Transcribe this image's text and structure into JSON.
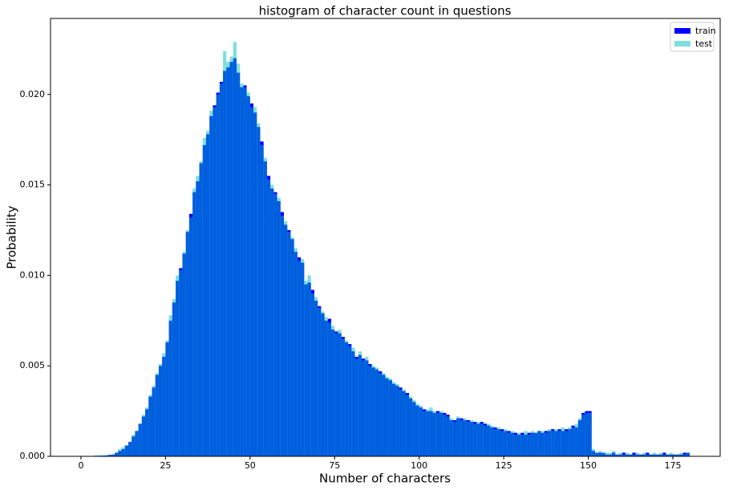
{
  "chart_data": {
    "type": "histogram",
    "title": "histogram of character count in questions",
    "x_label": "Number of characters",
    "y_label": "Probability",
    "bins": [
      0,
      1,
      2,
      3,
      4,
      5,
      6,
      7,
      8,
      9,
      10,
      11,
      12,
      13,
      14,
      15,
      16,
      17,
      18,
      19,
      20,
      21,
      22,
      23,
      24,
      25,
      26,
      27,
      28,
      29,
      30,
      31,
      32,
      33,
      34,
      35,
      36,
      37,
      38,
      39,
      40,
      41,
      42,
      43,
      44,
      45,
      46,
      47,
      48,
      49,
      50,
      51,
      52,
      53,
      54,
      55,
      56,
      57,
      58,
      59,
      60,
      61,
      62,
      63,
      64,
      65,
      66,
      67,
      68,
      69,
      70,
      71,
      72,
      73,
      74,
      75,
      76,
      77,
      78,
      79,
      80,
      81,
      82,
      83,
      84,
      85,
      86,
      87,
      88,
      89,
      90,
      91,
      92,
      93,
      94,
      95,
      96,
      97,
      98,
      99,
      100,
      101,
      102,
      103,
      104,
      105,
      106,
      107,
      108,
      109,
      110,
      111,
      112,
      113,
      114,
      115,
      116,
      117,
      118,
      119,
      120,
      121,
      122,
      123,
      124,
      125,
      126,
      127,
      128,
      129,
      130,
      131,
      132,
      133,
      134,
      135,
      136,
      137,
      138,
      139,
      140,
      141,
      142,
      143,
      144,
      145,
      146,
      147,
      148,
      149,
      150,
      151,
      152,
      153,
      154,
      155,
      156,
      157,
      158,
      159,
      160,
      161,
      162,
      163,
      164,
      165,
      166,
      167,
      168,
      169,
      170,
      171,
      172,
      173,
      174,
      175,
      176,
      177,
      178,
      179,
      180
    ],
    "series": [
      {
        "name": "train",
        "color": "#0000ff",
        "alpha": 1,
        "values": [
          0,
          0,
          1e-05,
          2e-05,
          3e-05,
          3e-05,
          4e-05,
          5e-05,
          8e-05,
          0.0001,
          0.0002,
          0.0003,
          0.0004,
          0.0006,
          0.0008,
          0.0011,
          0.0014,
          0.0018,
          0.0022,
          0.0026,
          0.0033,
          0.0038,
          0.0045,
          0.005,
          0.0055,
          0.0063,
          0.0075,
          0.0085,
          0.0097,
          0.0104,
          0.0112,
          0.0124,
          0.0134,
          0.0146,
          0.0152,
          0.0162,
          0.0172,
          0.0178,
          0.0188,
          0.0194,
          0.0201,
          0.0207,
          0.0213,
          0.0215,
          0.0218,
          0.022,
          0.0212,
          0.0204,
          0.0205,
          0.0199,
          0.0195,
          0.019,
          0.0182,
          0.0174,
          0.0163,
          0.0155,
          0.0148,
          0.0146,
          0.0141,
          0.0135,
          0.0128,
          0.0125,
          0.012,
          0.0113,
          0.011,
          0.0107,
          0.0095,
          0.0096,
          0.0092,
          0.0086,
          0.0083,
          0.0079,
          0.0075,
          0.0076,
          0.007,
          0.0069,
          0.0068,
          0.0066,
          0.0063,
          0.0062,
          0.0058,
          0.0055,
          0.0056,
          0.0054,
          0.0053,
          0.0051,
          0.0049,
          0.0048,
          0.0047,
          0.0045,
          0.0043,
          0.0042,
          0.004,
          0.0039,
          0.0038,
          0.0036,
          0.0035,
          0.0032,
          0.003,
          0.0028,
          0.0027,
          0.0026,
          0.0025,
          0.0025,
          0.0024,
          0.0025,
          0.0024,
          0.0024,
          0.0023,
          0.002,
          0.002,
          0.0021,
          0.0021,
          0.002,
          0.002,
          0.0019,
          0.0019,
          0.0018,
          0.0019,
          0.0018,
          0.0017,
          0.0016,
          0.0016,
          0.0015,
          0.0015,
          0.0014,
          0.0014,
          0.0013,
          0.0013,
          0.0012,
          0.0013,
          0.0012,
          0.0013,
          0.0013,
          0.0013,
          0.0014,
          0.0013,
          0.0014,
          0.0014,
          0.0015,
          0.0014,
          0.0015,
          0.0014,
          0.0015,
          0.0015,
          0.0017,
          0.0016,
          0.002,
          0.0024,
          0.0025,
          0.0025,
          0.0003,
          0.0002,
          0.0002,
          0.0002,
          0.0001,
          0.0001,
          0.0002,
          0.0001,
          0.0001,
          0.0002,
          0.0001,
          0.0001,
          0.0002,
          0.0001,
          0.0001,
          0.0001,
          0.0002,
          0.0001,
          0.0001,
          0.0001,
          0.0001,
          0.0002,
          0.0001,
          0.0001,
          0.0001,
          0.0001,
          0.0001,
          0.0002,
          0.0002
        ]
      },
      {
        "name": "test",
        "color": "#00bebe",
        "alpha": 0.5,
        "values": [
          0,
          0,
          1e-05,
          2e-05,
          4e-05,
          4e-05,
          5e-05,
          6e-05,
          9e-05,
          0.0001,
          0.0002,
          0.0004,
          0.0005,
          0.0006,
          0.0008,
          0.0012,
          0.0014,
          0.0018,
          0.0023,
          0.0027,
          0.0034,
          0.0039,
          0.0046,
          0.0051,
          0.0057,
          0.0064,
          0.0078,
          0.0087,
          0.01,
          0.0103,
          0.0113,
          0.0125,
          0.0132,
          0.0148,
          0.0155,
          0.0163,
          0.0176,
          0.018,
          0.0191,
          0.0193,
          0.02,
          0.0206,
          0.0224,
          0.0218,
          0.0221,
          0.0229,
          0.0217,
          0.0206,
          0.0204,
          0.0201,
          0.0193,
          0.0193,
          0.0184,
          0.0172,
          0.0165,
          0.0153,
          0.015,
          0.0145,
          0.0143,
          0.0133,
          0.013,
          0.0124,
          0.0121,
          0.0115,
          0.0108,
          0.0109,
          0.0097,
          0.01,
          0.009,
          0.0088,
          0.0082,
          0.008,
          0.0077,
          0.0074,
          0.0072,
          0.0068,
          0.007,
          0.0065,
          0.0064,
          0.0061,
          0.006,
          0.0054,
          0.0058,
          0.0053,
          0.0055,
          0.005,
          0.005,
          0.0049,
          0.0046,
          0.0046,
          0.0044,
          0.0043,
          0.0041,
          0.004,
          0.0037,
          0.0037,
          0.0034,
          0.0033,
          0.0031,
          0.0029,
          0.0028,
          0.0025,
          0.0026,
          0.0027,
          0.0025,
          0.0024,
          0.0025,
          0.0023,
          0.0022,
          0.0021,
          0.0019,
          0.0022,
          0.002,
          0.0021,
          0.0019,
          0.002,
          0.0018,
          0.0019,
          0.0018,
          0.0017,
          0.0018,
          0.0017,
          0.0015,
          0.0016,
          0.0014,
          0.0015,
          0.0013,
          0.0014,
          0.0012,
          0.0013,
          0.0012,
          0.0014,
          0.0012,
          0.0014,
          0.0013,
          0.0014,
          0.0014,
          0.0013,
          0.0015,
          0.0014,
          0.0015,
          0.0014,
          0.0016,
          0.0014,
          0.0016,
          0.0016,
          0.0018,
          0.0021,
          0.0023,
          0.0024,
          0.0024,
          0.0004,
          0.0002,
          0.0003,
          0.0002,
          0.0002,
          0.0002,
          0.0003,
          0.0001,
          0.0002,
          0.0001,
          0.0002,
          0.0001,
          0.0001,
          0.0002,
          0.0001,
          0.0002,
          0.0001,
          0.0001,
          0.0002,
          0.0001,
          0.0002,
          0.0001,
          0.0001,
          0.0002,
          0.0001,
          0.0001,
          0.0002,
          0.0001,
          0.0002
        ]
      }
    ],
    "xlim": [
      -9,
      189
    ],
    "ylim": [
      0,
      0.0242
    ],
    "xticks": [
      0,
      25,
      50,
      75,
      100,
      125,
      150,
      175
    ],
    "yticks": [
      {
        "value": 0,
        "label": "0.000"
      },
      {
        "value": 0.005,
        "label": "0.005"
      },
      {
        "value": 0.01,
        "label": "0.010"
      },
      {
        "value": 0.015,
        "label": "0.015"
      },
      {
        "value": 0.02,
        "label": "0.020"
      }
    ],
    "legend": "upper right"
  }
}
